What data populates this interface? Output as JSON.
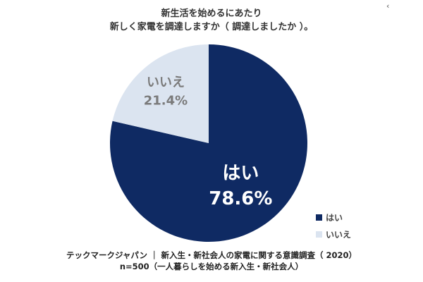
{
  "title_lines": [
    "新生活を始めるにあたり",
    "新しく家電を調達しますか（ 調達しましたか ）。"
  ],
  "corner_mark": "‹",
  "chart_data": {
    "type": "pie",
    "title": "新生活を始めるにあたり 新しく家電を調達しますか（ 調達しましたか ）。",
    "slices": [
      {
        "label": "はい",
        "value": 78.6,
        "display": "78.6%",
        "color": "#0f2a63",
        "text_color": "#ffffff"
      },
      {
        "label": "いいえ",
        "value": 21.4,
        "display": "21.4%",
        "color": "#dbe4f0",
        "text_color": "#7a7a7a"
      }
    ],
    "legend": [
      {
        "label": "はい",
        "color": "#0f2a63"
      },
      {
        "label": "いいえ",
        "color": "#dbe4f0"
      }
    ],
    "legend_position": "bottom-right",
    "start": "top, clockwise"
  },
  "footer_lines": [
    "テックマークジャパン ｜ 新入生・新社会人の家電に関する意識調査（ 2020）",
    "n=500（一人暮らしを始める新入生・新社会人）"
  ]
}
